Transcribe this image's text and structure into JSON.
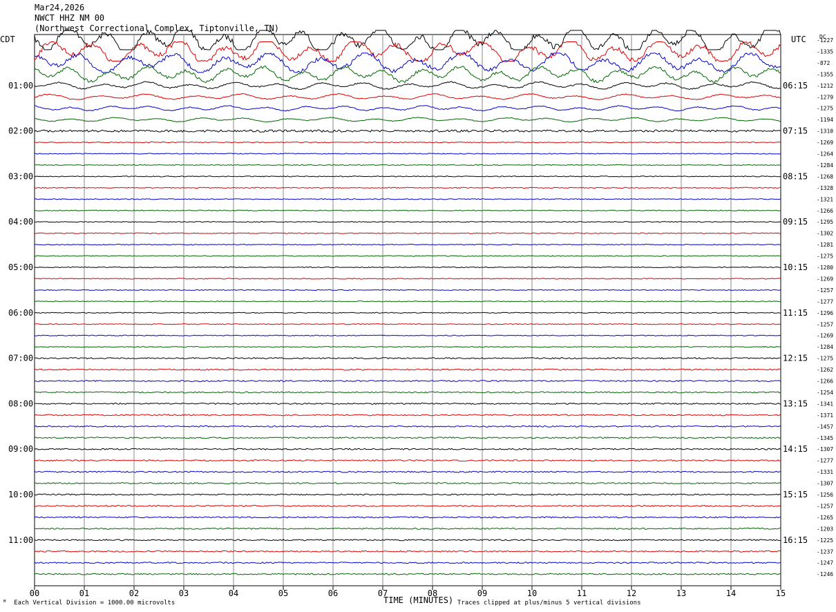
{
  "header": {
    "date": "Mar24,2026",
    "station": "NWCT HHZ NM 00",
    "location": "(Northwest Correctional Complex, Tiptonville, TN)"
  },
  "left_timezone": "CDT",
  "right_timezone": "UTC",
  "dc_label": "DC",
  "footer": {
    "scale_note": "Each Vertical Division = 1000.00 microvolts",
    "clip_note": "Traces clipped at plus/minus 5 vertical divisions",
    "x_title": "TIME (MINUTES)"
  },
  "colors": {
    "series": [
      "#000000",
      "#dd0000",
      "#0000cc",
      "#006600"
    ],
    "grid": "#000000"
  },
  "chart_data": {
    "type": "line",
    "subtype": "helicorder",
    "xlabel": "TIME (MINUTES)",
    "xlim": [
      0,
      15
    ],
    "x_ticks": [
      "00",
      "01",
      "02",
      "03",
      "04",
      "05",
      "06",
      "07",
      "08",
      "09",
      "10",
      "11",
      "12",
      "13",
      "14",
      "15"
    ],
    "minutes_per_trace": 15,
    "left_hour_labels": [
      "01:00",
      "02:00",
      "03:00",
      "04:00",
      "05:00",
      "06:00",
      "07:00",
      "08:00",
      "09:00",
      "10:00",
      "11:00"
    ],
    "right_hour_labels": [
      "06:15",
      "07:15",
      "08:15",
      "09:15",
      "10:15",
      "11:15",
      "12:15",
      "13:15",
      "14:15",
      "15:15",
      "16:15"
    ],
    "dc_offsets": [
      -1227,
      -1335,
      -872,
      -1355,
      -1212,
      -1279,
      -1275,
      -1194,
      -1310,
      -1269,
      -1264,
      -1284,
      -1268,
      -1328,
      -1321,
      -1266,
      -1295,
      -1302,
      -1281,
      -1275,
      -1280,
      -1269,
      -1257,
      -1277,
      -1296,
      -1257,
      -1269,
      -1284,
      -1275,
      -1262,
      -1266,
      -1254,
      -1341,
      -1371,
      -1457,
      -1345,
      -1307,
      -1277,
      -1331,
      -1307,
      -1256,
      -1257,
      -1265,
      -1203,
      -1225,
      -1237,
      -1247,
      -1246
    ],
    "trace_amplitude_divisions": [
      4.0,
      3.5,
      3.0,
      2.2,
      1.0,
      0.8,
      0.7,
      0.6,
      0.5,
      0.2,
      0.2,
      0.2,
      0.2,
      0.2,
      0.2,
      0.2,
      0.2,
      0.2,
      0.2,
      0.2,
      0.2,
      0.2,
      0.2,
      0.2,
      0.2,
      0.2,
      0.2,
      0.2,
      0.3,
      0.3,
      0.3,
      0.3,
      0.3,
      0.3,
      0.3,
      0.3,
      0.3,
      0.3,
      0.3,
      0.3,
      0.3,
      0.3,
      0.3,
      0.3,
      0.3,
      0.3,
      0.3,
      0.3
    ]
  }
}
